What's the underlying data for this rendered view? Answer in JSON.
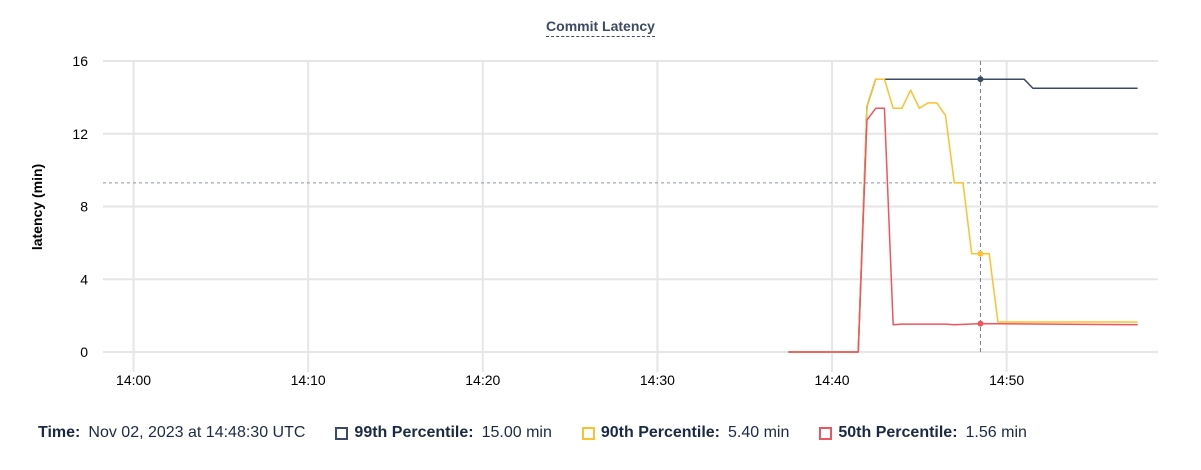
{
  "chart_data": {
    "type": "line",
    "title": "Commit Latency",
    "xlabel": "",
    "ylabel": "latency (min)",
    "xlim": [
      "13:58:15",
      "14:58:40"
    ],
    "ylim": [
      0,
      16
    ],
    "x_ticks": [
      "14:00",
      "14:10",
      "14:20",
      "14:30",
      "14:40",
      "14:50"
    ],
    "y_ticks": [
      "0",
      "4",
      "8",
      "12",
      "16"
    ],
    "grid": true,
    "reference_line_y": 9.3,
    "hover_time": "14:48:30",
    "series": [
      {
        "name": "99th Percentile",
        "color": "#3b4a66",
        "points": [
          [
            "14:37:30",
            0
          ],
          [
            "14:41:30",
            0
          ],
          [
            "14:42:00",
            13.5
          ],
          [
            "14:42:30",
            15
          ],
          [
            "14:51:00",
            15
          ],
          [
            "14:51:30",
            14.5
          ],
          [
            "14:57:30",
            14.5
          ]
        ]
      },
      {
        "name": "90th Percentile",
        "color": "#fcc12d",
        "points": [
          [
            "14:37:30",
            0
          ],
          [
            "14:41:30",
            0
          ],
          [
            "14:42:00",
            13.5
          ],
          [
            "14:42:30",
            15
          ],
          [
            "14:43:00",
            15
          ],
          [
            "14:43:30",
            13.4
          ],
          [
            "14:44:00",
            13.4
          ],
          [
            "14:44:30",
            14.4
          ],
          [
            "14:45:00",
            13.4
          ],
          [
            "14:45:30",
            13.7
          ],
          [
            "14:46:00",
            13.7
          ],
          [
            "14:46:30",
            13.0
          ],
          [
            "14:47:00",
            9.3
          ],
          [
            "14:47:30",
            9.3
          ],
          [
            "14:48:00",
            5.4
          ],
          [
            "14:49:00",
            5.4
          ],
          [
            "14:49:30",
            1.65
          ],
          [
            "14:57:30",
            1.65
          ]
        ]
      },
      {
        "name": "50th Percentile",
        "color": "#f0545f",
        "points": [
          [
            "14:37:30",
            0
          ],
          [
            "14:41:30",
            0
          ],
          [
            "14:42:00",
            12.75
          ],
          [
            "14:42:30",
            13.4
          ],
          [
            "14:43:00",
            13.4
          ],
          [
            "14:43:30",
            1.5
          ],
          [
            "14:44:00",
            1.53
          ],
          [
            "14:46:30",
            1.53
          ],
          [
            "14:47:00",
            1.5
          ],
          [
            "14:48:30",
            1.56
          ],
          [
            "14:57:30",
            1.5
          ]
        ]
      }
    ]
  },
  "legend": {
    "time_label": "Time:",
    "time_value": "Nov 02, 2023 at 14:48:30 UTC",
    "items": [
      {
        "label": "99th Percentile:",
        "value": "15.00 min",
        "color": "#3b4a66"
      },
      {
        "label": "90th Percentile:",
        "value": "5.40 min",
        "color": "#fcc12d"
      },
      {
        "label": "50th Percentile:",
        "value": "1.56 min",
        "color": "#f0545f"
      }
    ]
  }
}
